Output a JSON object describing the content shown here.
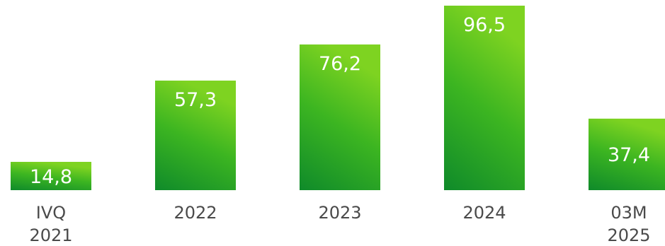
{
  "chart_data": {
    "type": "bar",
    "categories": [
      [
        "IVQ",
        "2021"
      ],
      [
        "2022"
      ],
      [
        "2023"
      ],
      [
        "2024"
      ],
      [
        "03M",
        "2025"
      ]
    ],
    "values": [
      14.8,
      57.3,
      76.2,
      96.5,
      37.4
    ],
    "value_labels": [
      "14,8",
      "57,3",
      "76,2",
      "96,5",
      "37,4"
    ],
    "title": "",
    "xlabel": "",
    "ylabel": "",
    "ylim": [
      0,
      96.5
    ],
    "grid": false,
    "legend": "none",
    "colors": {
      "bar_top": "#7ed321",
      "bar_mid": "#3cb521",
      "bar_bottom": "#0f8a2a",
      "value_text": "#ffffff",
      "category_text": "#4a4a4a"
    }
  }
}
